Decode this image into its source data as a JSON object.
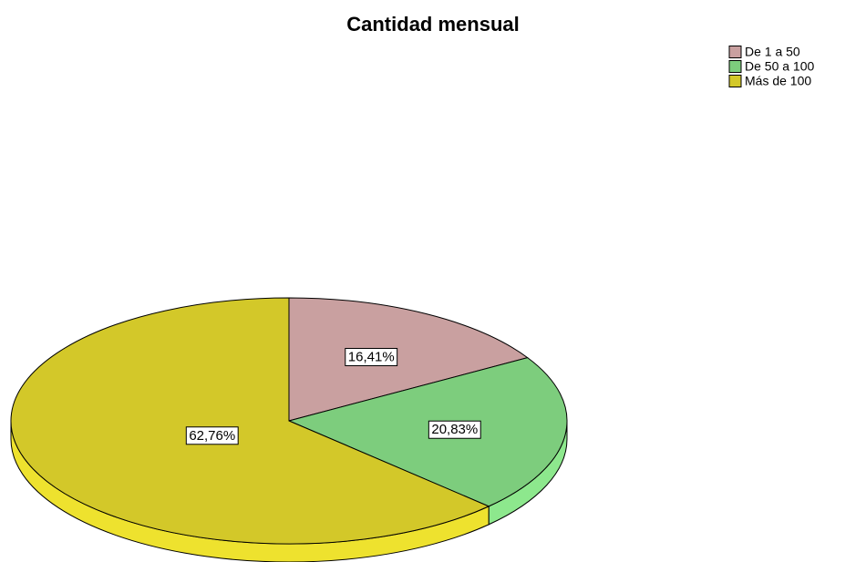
{
  "chart_data": {
    "type": "pie",
    "title": "Cantidad mensual",
    "categories": [
      "De 1 a 50",
      "De 50 a 100",
      "Más de 100"
    ],
    "values": [
      16.41,
      20.83,
      62.76
    ],
    "value_labels": [
      "16,41%",
      "20,83%",
      "62,76%"
    ],
    "colors": [
      "#c9a0a0",
      "#7dcd7d",
      "#d3c829"
    ],
    "legend": "top-right"
  }
}
